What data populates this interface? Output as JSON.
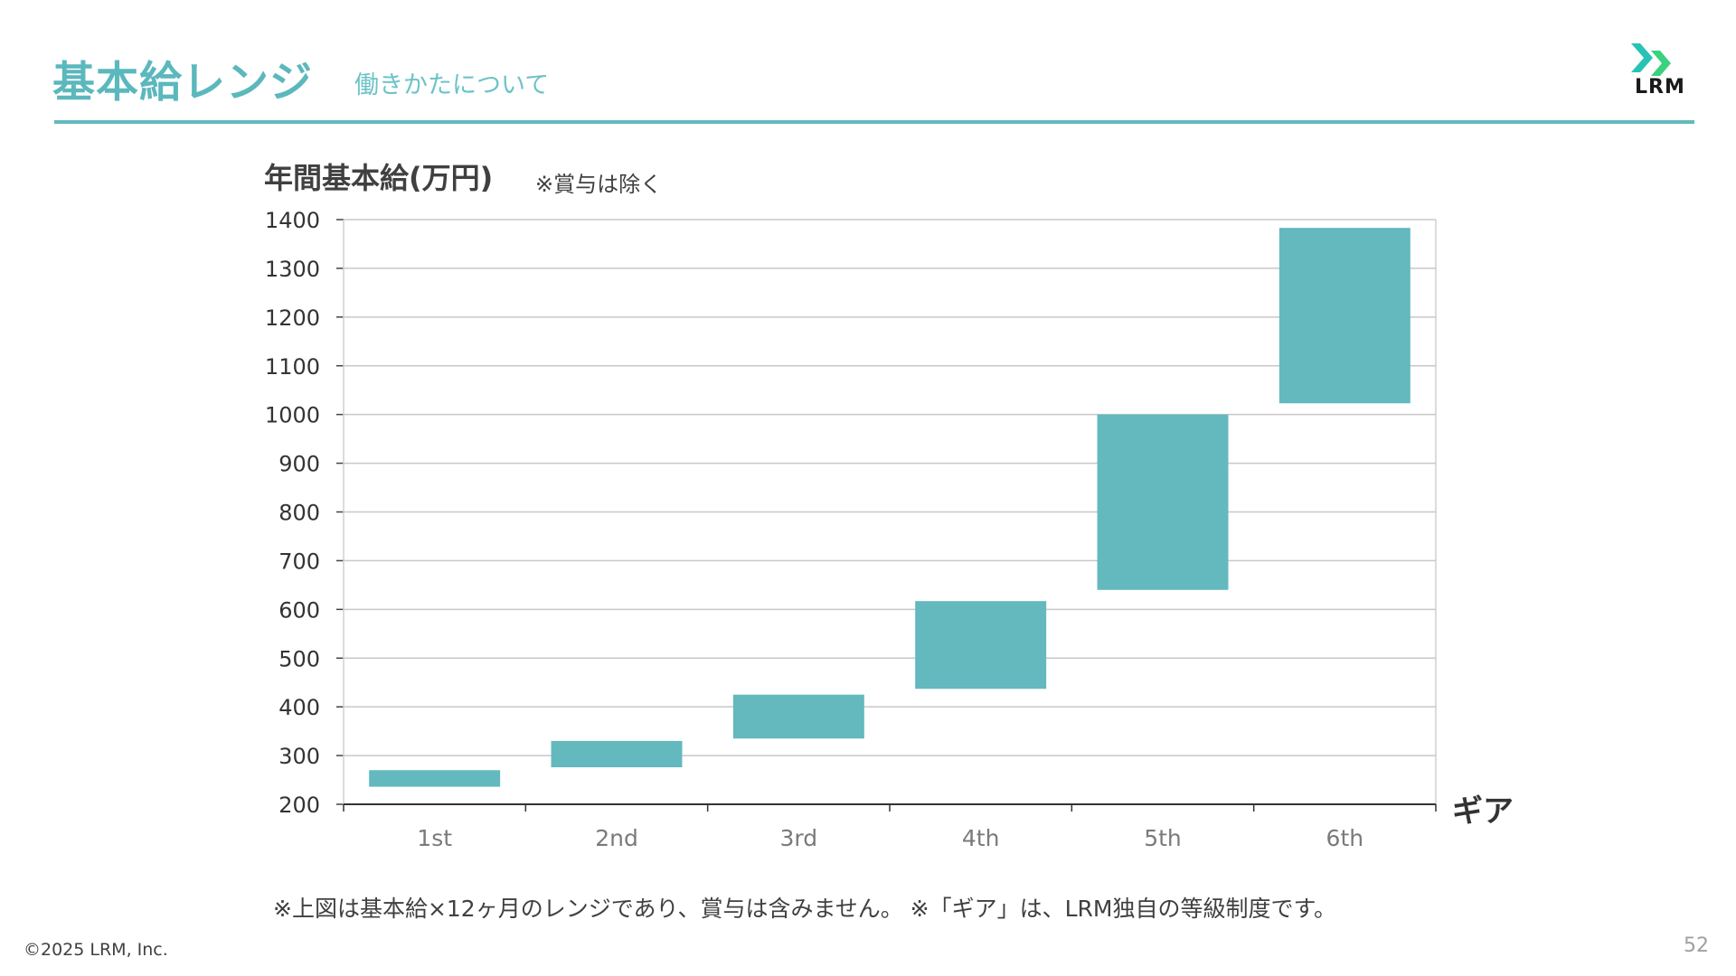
{
  "header": {
    "title": "基本給レンジ",
    "subtitle": "働きかたについて",
    "logo_text": "LRM"
  },
  "colors": {
    "accent": "#5bb8bd",
    "bar": "#63b9bd",
    "logo_teal": "#28c3b4",
    "logo_green": "#3ad17f"
  },
  "footer": {
    "note": "※上図は基本給×12ヶ月のレンジであり、賞与は含みません。 ※「ギア」は、LRM独自の等級制度です。",
    "copyright": "©2025 LRM, Inc.",
    "page_number": "52"
  },
  "chart_data": {
    "type": "bar",
    "subtype": "floating-range",
    "ylabel": "年間基本給(万円)",
    "ylabel_note": "※賞与は除く",
    "xlabel": "ギア",
    "categories": [
      "1st",
      "2nd",
      "3rd",
      "4th",
      "5th",
      "6th"
    ],
    "ranges": [
      {
        "low": 236,
        "high": 270
      },
      {
        "low": 276,
        "high": 330
      },
      {
        "low": 335,
        "high": 425
      },
      {
        "low": 437,
        "high": 617
      },
      {
        "low": 640,
        "high": 1000
      },
      {
        "low": 1023,
        "high": 1383
      }
    ],
    "ylim": [
      200,
      1400
    ],
    "yticks": [
      200,
      300,
      400,
      500,
      600,
      700,
      800,
      900,
      1000,
      1100,
      1200,
      1300,
      1400
    ],
    "grid": true,
    "legend": "none"
  }
}
